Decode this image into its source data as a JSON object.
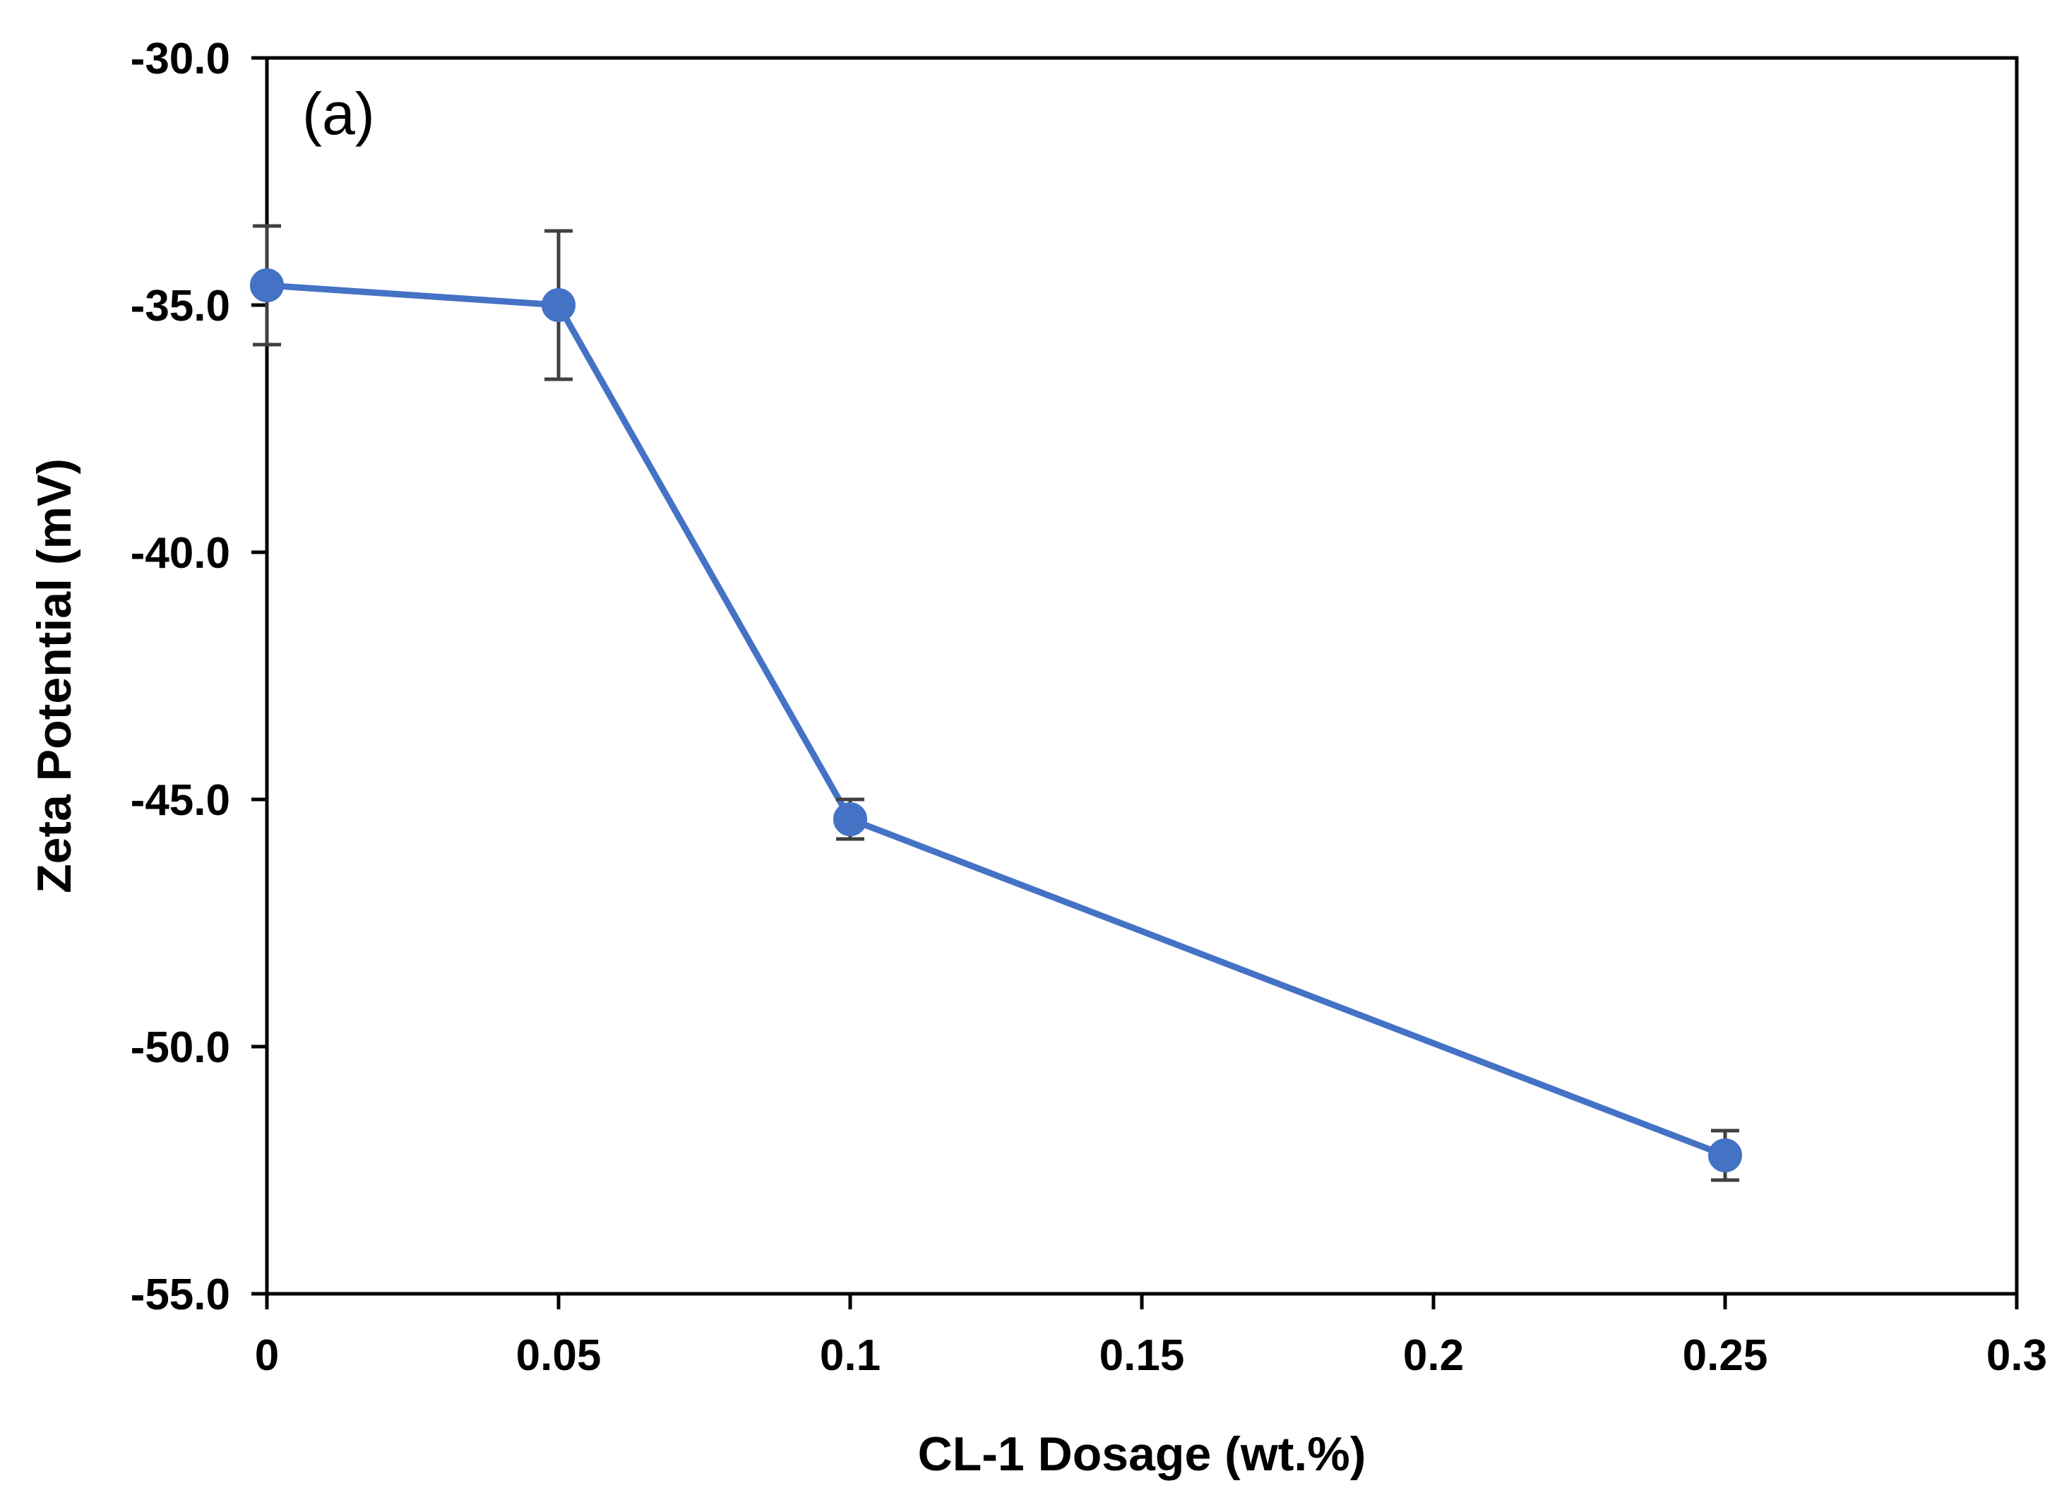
{
  "chart_data": {
    "type": "line",
    "panel_label": "(a)",
    "xlabel": "CL-1 Dosage (wt.%)",
    "ylabel": "Zeta Potential (mV)",
    "xlim": [
      0,
      0.3
    ],
    "ylim": [
      -55.0,
      -30.0
    ],
    "x_ticks": [
      0,
      0.05,
      0.1,
      0.15,
      0.2,
      0.25,
      0.3
    ],
    "x_tick_labels": [
      "0",
      "0.05",
      "0.1",
      "0.15",
      "0.2",
      "0.25",
      "0.3"
    ],
    "y_ticks": [
      -30.0,
      -35.0,
      -40.0,
      -45.0,
      -50.0,
      -55.0
    ],
    "y_tick_labels": [
      "-30.0",
      "-35.0",
      "-40.0",
      "-45.0",
      "-50.0",
      "-55.0"
    ],
    "grid": false,
    "legend": "none",
    "series": [
      {
        "color": "#4472C4",
        "error_bar_color": "#404040",
        "marker": "circle",
        "x": [
          0,
          0.05,
          0.1,
          0.25
        ],
        "y": [
          -34.6,
          -35.0,
          -45.4,
          -52.2
        ],
        "error": [
          1.2,
          1.5,
          0.4,
          0.5
        ]
      }
    ]
  }
}
